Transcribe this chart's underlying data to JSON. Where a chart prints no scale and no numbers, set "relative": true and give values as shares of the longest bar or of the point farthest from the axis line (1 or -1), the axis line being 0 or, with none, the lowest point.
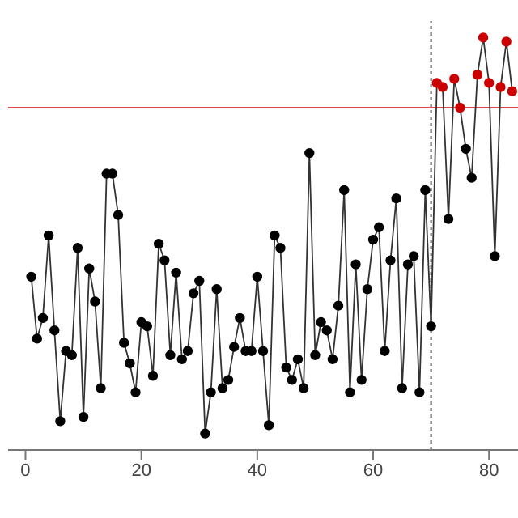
{
  "chart_data": {
    "type": "line",
    "relative": true,
    "x": [
      1,
      2,
      3,
      4,
      5,
      6,
      7,
      8,
      9,
      10,
      11,
      12,
      13,
      14,
      15,
      16,
      17,
      18,
      19,
      20,
      21,
      22,
      23,
      24,
      25,
      26,
      27,
      28,
      29,
      30,
      31,
      32,
      33,
      34,
      35,
      36,
      37,
      38,
      39,
      40,
      41,
      42,
      43,
      44,
      45,
      46,
      47,
      48,
      49,
      50,
      51,
      52,
      53,
      54,
      55,
      56,
      57,
      58,
      59,
      60,
      61,
      62,
      63,
      64,
      65,
      66,
      67,
      68,
      69,
      70,
      71,
      72,
      73,
      74,
      75,
      76,
      77,
      78,
      79,
      80,
      81,
      82,
      83,
      84
    ],
    "series": [
      {
        "color": "#333333",
        "values": [
          0.42,
          0.27,
          0.32,
          0.52,
          0.29,
          0.07,
          0.24,
          0.23,
          0.49,
          0.08,
          0.44,
          0.36,
          0.15,
          0.67,
          0.67,
          0.57,
          0.26,
          0.21,
          0.14,
          0.31,
          0.3,
          0.18,
          0.5,
          0.46,
          0.23,
          0.43,
          0.22,
          0.24,
          0.38,
          0.41,
          0.04,
          0.14,
          0.39,
          0.15,
          0.17,
          0.25,
          0.32,
          0.24,
          0.24,
          0.42,
          0.24,
          0.06,
          0.52,
          0.49,
          0.2,
          0.17,
          0.22,
          0.15,
          0.72,
          0.23,
          0.31,
          0.29,
          0.22,
          0.35,
          0.63,
          0.14,
          0.45,
          0.17,
          0.39,
          0.51,
          0.54,
          0.24,
          0.46,
          0.61,
          0.15,
          0.45,
          0.47,
          0.14,
          0.63,
          0.3,
          0.89,
          0.88,
          0.56,
          0.9,
          0.83,
          0.73,
          0.66,
          0.91,
          1,
          0.89,
          0.47,
          0.88,
          0.99,
          0.87
        ],
        "colors": [
          "#000000",
          "#000000",
          "#000000",
          "#000000",
          "#000000",
          "#000000",
          "#000000",
          "#000000",
          "#000000",
          "#000000",
          "#000000",
          "#000000",
          "#000000",
          "#000000",
          "#000000",
          "#000000",
          "#000000",
          "#000000",
          "#000000",
          "#000000",
          "#000000",
          "#000000",
          "#000000",
          "#000000",
          "#000000",
          "#000000",
          "#000000",
          "#000000",
          "#000000",
          "#000000",
          "#000000",
          "#000000",
          "#000000",
          "#000000",
          "#000000",
          "#000000",
          "#000000",
          "#000000",
          "#000000",
          "#000000",
          "#000000",
          "#000000",
          "#000000",
          "#000000",
          "#000000",
          "#000000",
          "#000000",
          "#000000",
          "#000000",
          "#000000",
          "#000000",
          "#000000",
          "#000000",
          "#000000",
          "#000000",
          "#000000",
          "#000000",
          "#000000",
          "#000000",
          "#000000",
          "#000000",
          "#000000",
          "#000000",
          "#000000",
          "#000000",
          "#000000",
          "#000000",
          "#000000",
          "#000000",
          "#000000",
          "#cc0000",
          "#cc0000",
          "#000000",
          "#cc0000",
          "#cc0000",
          "#000000",
          "#000000",
          "#cc0000",
          "#cc0000",
          "#cc0000",
          "#000000",
          "#cc0000",
          "#cc0000",
          "#cc0000"
        ]
      }
    ],
    "xlim": [
      -3,
      85
    ],
    "xticks": [
      0,
      20,
      40,
      60,
      80
    ],
    "marker": "circle",
    "grid": false,
    "legend": false,
    "ref_lines": [
      {
        "axis": "y",
        "value": 0.83,
        "color": "#e8474f",
        "line_style": "solid"
      },
      {
        "axis": "x",
        "value": 70,
        "color": "#555555",
        "line_style": "dotted"
      }
    ]
  }
}
